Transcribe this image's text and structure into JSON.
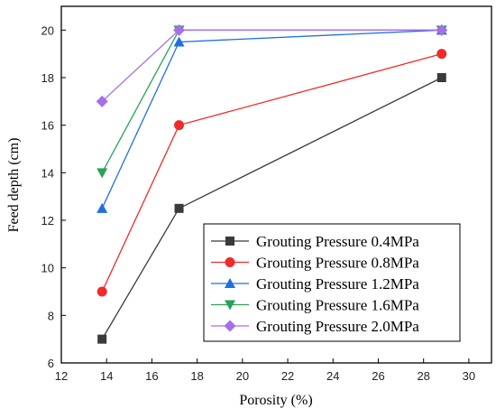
{
  "chart_data": {
    "type": "line",
    "title": "",
    "xlabel": "Porosity (%)",
    "ylabel": "Feed depth (cm)",
    "xlim": [
      12,
      31
    ],
    "ylim": [
      6,
      21
    ],
    "xticks": [
      "12",
      "14",
      "16",
      "18",
      "20",
      "22",
      "24",
      "26",
      "28",
      "30"
    ],
    "yticks": [
      "6",
      "8",
      "10",
      "12",
      "14",
      "16",
      "18",
      "20"
    ],
    "x": [
      13.8,
      17.2,
      28.8
    ],
    "grid": false,
    "legend_position": "bottom-right",
    "series": [
      {
        "name": "Grouting Pressure 0.4MPa",
        "values": [
          7,
          12.5,
          18
        ],
        "color": "#3a3a3a",
        "marker": "square"
      },
      {
        "name": "Grouting Pressure 0.8MPa",
        "values": [
          9,
          16,
          19
        ],
        "color": "#ef2b2b",
        "marker": "circle"
      },
      {
        "name": "Grouting Pressure 1.2MPa",
        "values": [
          12.5,
          19.5,
          20
        ],
        "color": "#1f6fe0",
        "marker": "triangle-up"
      },
      {
        "name": "Grouting Pressure 1.6MPa",
        "values": [
          14,
          20,
          20
        ],
        "color": "#2aa25a",
        "marker": "triangle-down"
      },
      {
        "name": "Grouting Pressure 2.0MPa",
        "values": [
          17,
          20,
          20
        ],
        "color": "#a66ee8",
        "marker": "diamond"
      }
    ]
  }
}
